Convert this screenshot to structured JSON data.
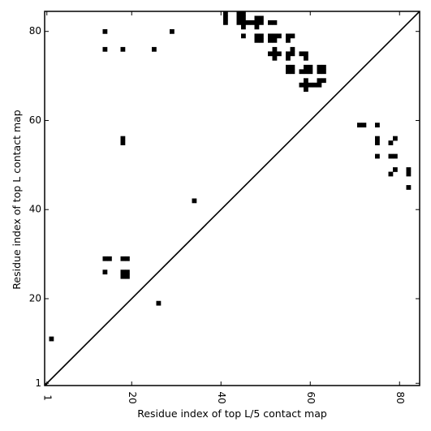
{
  "chart_data": {
    "type": "heatmap",
    "title": "",
    "xlabel": "Residue index of top L/5 contact map",
    "ylabel": "Residue index of top L contact map",
    "xlim": [
      0.5,
      84.5
    ],
    "ylim": [
      0.5,
      84.5
    ],
    "xticks": [
      {
        "value": 1,
        "label": "1"
      },
      {
        "value": 20,
        "label": "20"
      },
      {
        "value": 40,
        "label": "40"
      },
      {
        "value": 60,
        "label": "60"
      },
      {
        "value": 80,
        "label": "80"
      }
    ],
    "yticks": [
      {
        "value": 1,
        "label": "1"
      },
      {
        "value": 20,
        "label": "20"
      },
      {
        "value": 40,
        "label": "40"
      },
      {
        "value": 60,
        "label": "60"
      },
      {
        "value": 80,
        "label": "80"
      }
    ],
    "diagonal": true,
    "colors": {
      "contact": "#000000",
      "background": "#ffffff"
    },
    "contacts": [
      [
        14,
        80
      ],
      [
        29,
        80
      ],
      [
        14,
        76
      ],
      [
        18,
        76
      ],
      [
        25,
        76
      ],
      [
        41,
        84
      ],
      [
        41,
        83
      ],
      [
        41,
        82
      ],
      [
        44,
        84
      ],
      [
        45,
        84
      ],
      [
        44,
        83
      ],
      [
        45,
        83
      ],
      [
        44,
        82
      ],
      [
        45,
        82
      ],
      [
        46,
        82
      ],
      [
        47,
        82
      ],
      [
        48,
        83
      ],
      [
        49,
        83
      ],
      [
        48,
        82
      ],
      [
        49,
        82
      ],
      [
        45,
        81
      ],
      [
        48,
        81
      ],
      [
        51,
        82
      ],
      [
        52,
        82
      ],
      [
        45,
        79
      ],
      [
        48,
        79
      ],
      [
        49,
        79
      ],
      [
        48,
        78
      ],
      [
        49,
        78
      ],
      [
        51,
        79
      ],
      [
        52,
        79
      ],
      [
        53,
        79
      ],
      [
        51,
        78
      ],
      [
        52,
        78
      ],
      [
        55,
        79
      ],
      [
        56,
        79
      ],
      [
        55,
        78
      ],
      [
        51,
        75
      ],
      [
        52,
        75
      ],
      [
        53,
        75
      ],
      [
        52,
        76
      ],
      [
        52,
        74
      ],
      [
        55,
        75
      ],
      [
        56,
        75
      ],
      [
        56,
        76
      ],
      [
        55,
        74
      ],
      [
        58,
        75
      ],
      [
        59,
        75
      ],
      [
        59,
        74
      ],
      [
        55,
        72
      ],
      [
        56,
        72
      ],
      [
        55,
        71
      ],
      [
        56,
        71
      ],
      [
        58,
        71
      ],
      [
        59,
        72
      ],
      [
        60,
        72
      ],
      [
        59,
        71
      ],
      [
        60,
        71
      ],
      [
        62,
        72
      ],
      [
        63,
        72
      ],
      [
        62,
        71
      ],
      [
        63,
        71
      ],
      [
        58,
        68
      ],
      [
        59,
        68
      ],
      [
        60,
        68
      ],
      [
        61,
        68
      ],
      [
        62,
        68
      ],
      [
        59,
        69
      ],
      [
        62,
        69
      ],
      [
        63,
        69
      ],
      [
        59,
        67
      ],
      [
        18,
        56
      ],
      [
        18,
        55
      ],
      [
        71,
        59
      ],
      [
        72,
        59
      ],
      [
        75,
        59
      ],
      [
        75,
        56
      ],
      [
        75,
        55
      ],
      [
        78,
        55
      ],
      [
        79,
        56
      ],
      [
        75,
        52
      ],
      [
        78,
        52
      ],
      [
        79,
        52
      ],
      [
        79,
        49
      ],
      [
        78,
        48
      ],
      [
        82,
        49
      ],
      [
        82,
        48
      ],
      [
        82,
        45
      ],
      [
        34,
        42
      ],
      [
        14,
        29
      ],
      [
        15,
        29
      ],
      [
        18,
        29
      ],
      [
        19,
        29
      ],
      [
        14,
        26
      ],
      [
        18,
        26
      ],
      [
        19,
        26
      ],
      [
        18,
        25
      ],
      [
        19,
        25
      ],
      [
        26,
        19
      ],
      [
        2,
        11
      ]
    ]
  }
}
